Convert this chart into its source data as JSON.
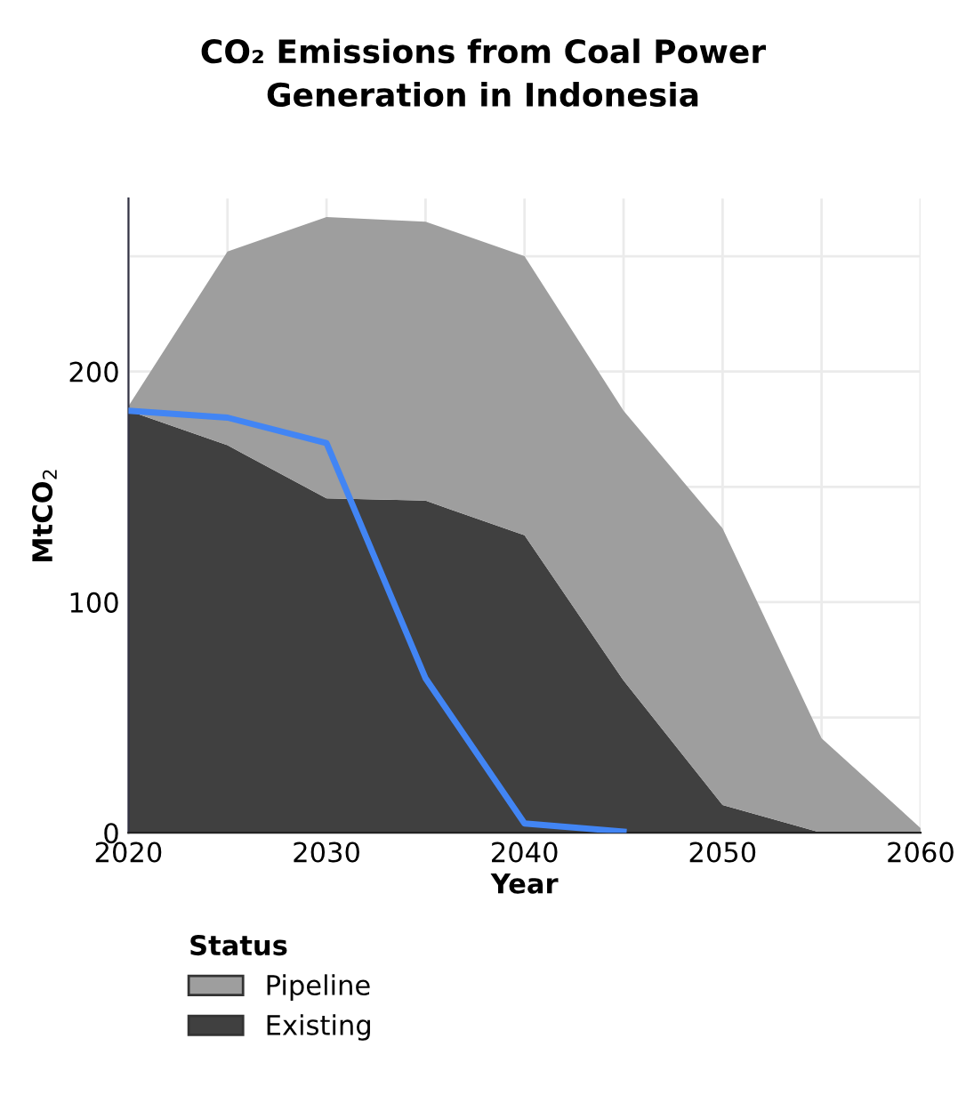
{
  "chart_data": {
    "type": "area",
    "stacked": true,
    "title": "CO₂ Emissions from Coal Power\nGeneration in Indonesia",
    "xlabel": "Year",
    "ylabel": "MtCO$_{2}$",
    "legend_title": "Status",
    "x": [
      2020,
      2025,
      2030,
      2035,
      2040,
      2045,
      2050,
      2055,
      2060
    ],
    "series": [
      {
        "name": "Existing",
        "color": "#404040",
        "values": [
          183,
          168,
          145,
          144,
          129,
          66,
          12,
          0,
          0
        ]
      },
      {
        "name": "Pipeline",
        "color": "#9e9e9e",
        "values": [
          2,
          84,
          122,
          121,
          121,
          117,
          120,
          41,
          2
        ]
      },
      {
        "type": "line",
        "color": "#4285f4",
        "x": [
          2020,
          2025,
          2030,
          2035,
          2040,
          2045
        ],
        "values": [
          183,
          180,
          169,
          67,
          4,
          0.5
        ]
      }
    ],
    "xlim": [
      2020,
      2060
    ],
    "ylim": [
      0,
      275
    ],
    "xticks": [
      2020,
      {
        "value": 2025,
        "label": null
      },
      2030,
      {
        "value": 2035,
        "label": null
      },
      2040,
      {
        "value": 2045,
        "label": null
      },
      2050,
      {
        "value": 2055,
        "label": null
      },
      2060
    ],
    "yticks": [
      0,
      {
        "value": 50,
        "label": null
      },
      100,
      {
        "value": 150,
        "label": null
      },
      200,
      {
        "value": 250,
        "label": null
      }
    ],
    "grid": true,
    "legend": "bottom left"
  }
}
